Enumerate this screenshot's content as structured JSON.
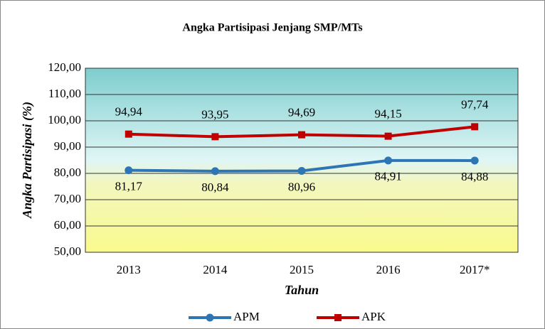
{
  "chart_data": {
    "type": "line",
    "title": "Angka Partisipasi Jenjang SMP/MTs",
    "x_label": "Tahun",
    "y_label": "Angka Partisipasi (%)",
    "categories": [
      "2013",
      "2014",
      "2015",
      "2016",
      "2017*"
    ],
    "series": [
      {
        "name": "APM",
        "color": "#2e75b6",
        "marker": "circle",
        "values": [
          81.17,
          80.84,
          80.96,
          84.91,
          84.88
        ],
        "value_labels": [
          "81,17",
          "80,84",
          "80,96",
          "84,91",
          "84,88"
        ],
        "label_position": "below"
      },
      {
        "name": "APK",
        "color": "#c00000",
        "marker": "square",
        "values": [
          94.94,
          93.95,
          94.69,
          94.15,
          97.74
        ],
        "value_labels": [
          "94,94",
          "93,95",
          "94,69",
          "94,15",
          "97,74"
        ],
        "label_position": "above"
      }
    ],
    "ylim": [
      50,
      120
    ],
    "yticks": [
      {
        "value": 50,
        "label": "50,00"
      },
      {
        "value": 60,
        "label": "60,00"
      },
      {
        "value": 70,
        "label": "70,00"
      },
      {
        "value": 80,
        "label": "80,00"
      },
      {
        "value": 90,
        "label": "90,00"
      },
      {
        "value": 100,
        "label": "100,00"
      },
      {
        "value": 110,
        "label": "110,00"
      },
      {
        "value": 120,
        "label": "120,00"
      }
    ],
    "grid": true,
    "legend": "bottom"
  }
}
